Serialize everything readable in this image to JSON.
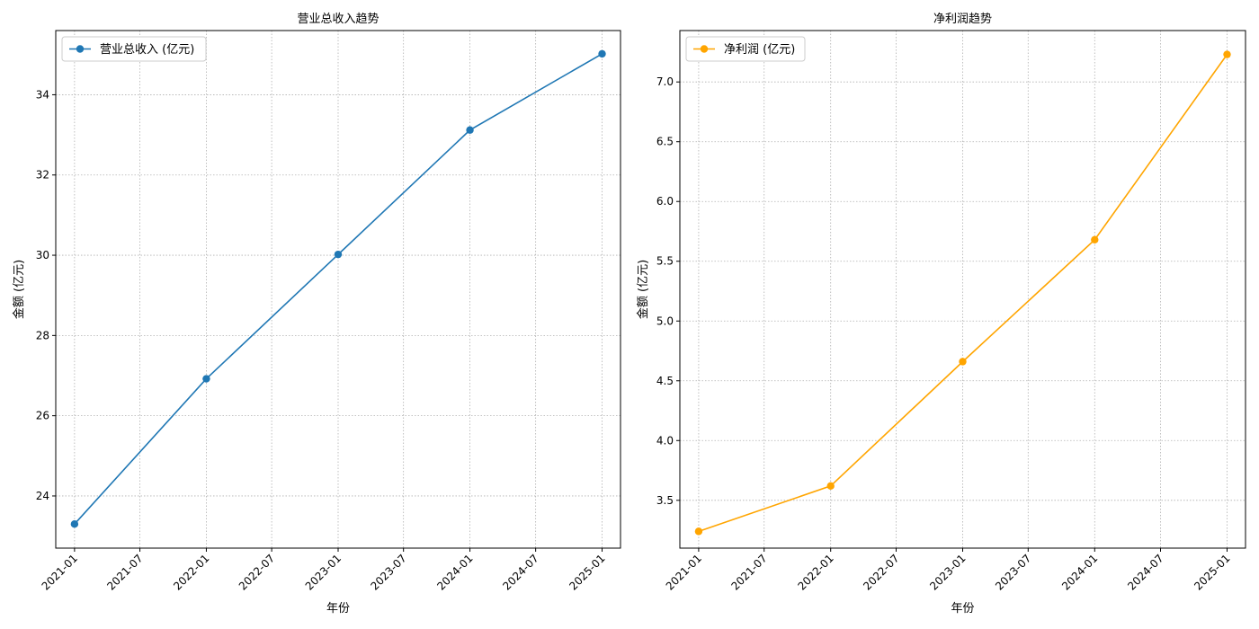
{
  "chart_data": [
    {
      "type": "line",
      "title": "营业总收入趋势",
      "xlabel": "年份",
      "ylabel": "金额 (亿元)",
      "x": [
        "2021-01-01",
        "2022-01-01",
        "2023-01-01",
        "2024-01-01",
        "2025-01-01"
      ],
      "x_ticks": [
        "2021-01",
        "2021-07",
        "2022-01",
        "2022-07",
        "2023-01",
        "2023-07",
        "2024-01",
        "2024-07",
        "2025-01"
      ],
      "xlim": [
        "2020-11-10",
        "2025-02-21"
      ],
      "y_ticks": [
        24,
        26,
        28,
        30,
        32,
        34
      ],
      "ylim": [
        22.7,
        35.6
      ],
      "grid": true,
      "legend_position": "upper-left",
      "series": [
        {
          "name": "营业总收入 (亿元)",
          "values": [
            23.3,
            26.92,
            30.02,
            33.12,
            35.02
          ],
          "color": "#1f77b4",
          "marker": "circle"
        }
      ]
    },
    {
      "type": "line",
      "title": "净利润趋势",
      "xlabel": "年份",
      "ylabel": "金额 (亿元)",
      "x": [
        "2021-01-01",
        "2022-01-01",
        "2023-01-01",
        "2024-01-01",
        "2025-01-01"
      ],
      "x_ticks": [
        "2021-01",
        "2021-07",
        "2022-01",
        "2022-07",
        "2023-01",
        "2023-07",
        "2024-01",
        "2024-07",
        "2025-01"
      ],
      "xlim": [
        "2020-11-10",
        "2025-02-21"
      ],
      "y_ticks": [
        3.5,
        4.0,
        4.5,
        5.0,
        5.5,
        6.0,
        6.5,
        7.0
      ],
      "ylim": [
        3.1,
        7.43
      ],
      "grid": true,
      "legend_position": "upper-left",
      "series": [
        {
          "name": "净利润 (亿元)",
          "values": [
            3.24,
            3.62,
            4.66,
            5.68,
            7.23
          ],
          "color": "#ffa500",
          "marker": "circle"
        }
      ]
    }
  ]
}
